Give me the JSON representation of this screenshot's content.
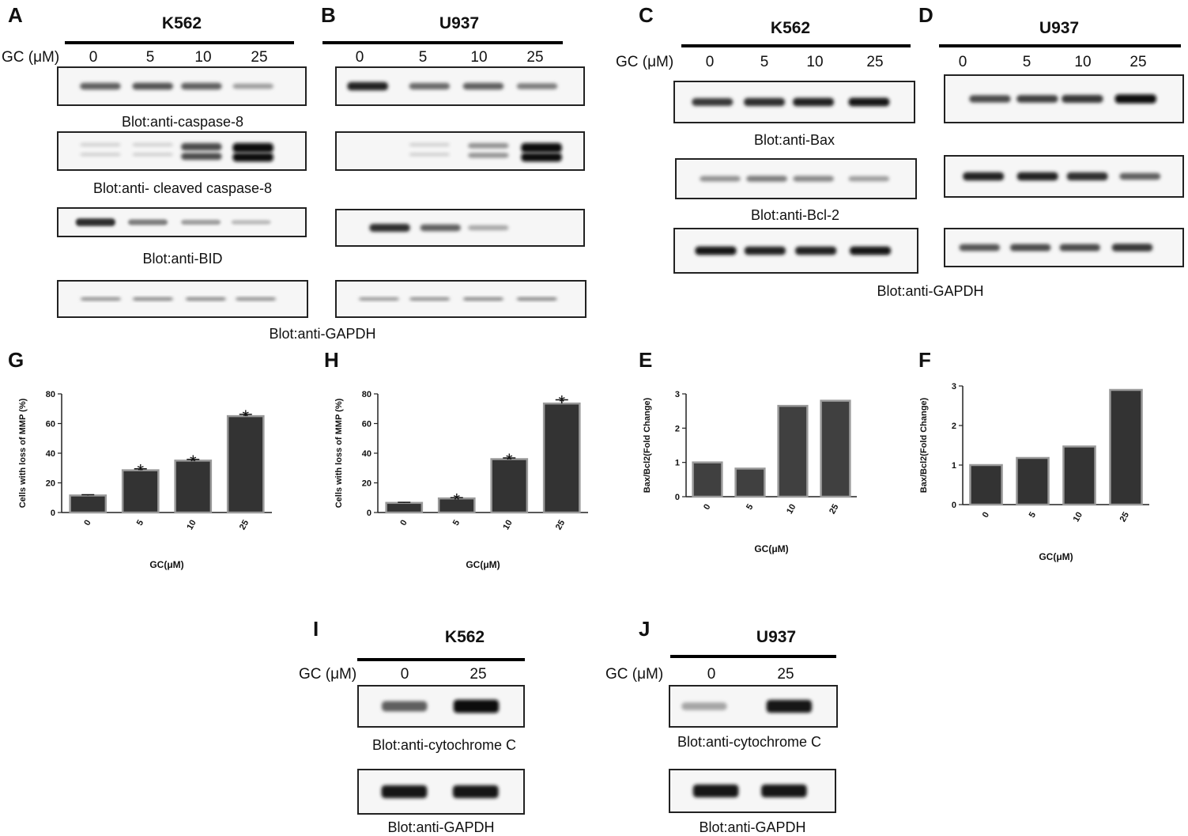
{
  "panels": {
    "A": {
      "letter": "A",
      "cell_line": "K562",
      "gc_label": "GC (μM)",
      "doses": [
        "0",
        "5",
        "10",
        "25"
      ],
      "blots": [
        "Blot:anti-caspase-8",
        "Blot:anti- cleaved caspase-8",
        "Blot:anti-BID",
        "Blot:anti-GAPDH"
      ]
    },
    "B": {
      "letter": "B",
      "cell_line": "U937",
      "doses": [
        "0",
        "5",
        "10",
        "25"
      ]
    },
    "C": {
      "letter": "C",
      "cell_line": "K562",
      "gc_label": "GC (μM)",
      "doses": [
        "0",
        "5",
        "10",
        "25"
      ],
      "blots": [
        "Blot:anti-Bax",
        "Blot:anti-Bcl-2",
        "Blot:anti-GAPDH"
      ]
    },
    "D": {
      "letter": "D",
      "cell_line": "U937",
      "doses": [
        "0",
        "5",
        "10",
        "25"
      ]
    },
    "E": {
      "letter": "E"
    },
    "F": {
      "letter": "F"
    },
    "G": {
      "letter": "G"
    },
    "H": {
      "letter": "H"
    },
    "I": {
      "letter": "I",
      "cell_line": "K562",
      "gc_label": "GC (μM)",
      "doses": [
        "0",
        "25"
      ],
      "blots": [
        "Blot:anti-cytochrome C",
        "Blot:anti-GAPDH"
      ]
    },
    "J": {
      "letter": "J",
      "cell_line": "U937",
      "gc_label": "GC (μM)",
      "doses": [
        "0",
        "25"
      ],
      "blots": [
        "Blot:anti-cytochrome C",
        "Blot:anti-GAPDH"
      ]
    }
  },
  "band_intensity": {
    "A": [
      [
        0.6,
        0.65,
        0.6,
        0.3
      ],
      [
        0.05,
        0.05,
        0.7,
        1.0
      ],
      [
        0.85,
        0.45,
        0.3,
        0.15
      ],
      [
        0.45,
        0.5,
        0.5,
        0.45
      ]
    ],
    "B": [
      [
        0.9,
        0.55,
        0.6,
        0.45
      ],
      [
        0.0,
        0.05,
        0.35,
        1.0
      ],
      [
        0.85,
        0.6,
        0.25,
        0.0
      ],
      [
        0.4,
        0.45,
        0.5,
        0.5
      ]
    ],
    "C": [
      [
        0.8,
        0.85,
        0.9,
        0.95
      ],
      [
        0.35,
        0.45,
        0.4,
        0.3
      ],
      [
        0.95,
        0.9,
        0.9,
        0.95
      ]
    ],
    "D": [
      [
        0.7,
        0.75,
        0.8,
        1.0
      ],
      [
        0.9,
        0.9,
        0.85,
        0.6
      ],
      [
        0.65,
        0.7,
        0.7,
        0.8
      ]
    ],
    "I": [
      [
        0.6,
        1.0
      ],
      [
        0.95,
        0.95
      ]
    ],
    "J": [
      [
        0.25,
        0.95
      ],
      [
        0.95,
        0.95
      ]
    ]
  },
  "chart_data": [
    {
      "id": "G",
      "type": "bar",
      "categories": [
        "0",
        "5",
        "10",
        "25"
      ],
      "values": [
        11.5,
        28.5,
        35,
        65
      ],
      "errors": [
        0.5,
        1,
        0.8,
        1.2
      ],
      "significant": [
        false,
        true,
        true,
        true
      ],
      "marker": "*",
      "xlabel": "GC(μM)",
      "ylabel": "Cells with loss of MMP (%)",
      "ylim": [
        0,
        80
      ],
      "yticks": [
        0,
        20,
        40,
        60,
        80
      ],
      "bar_color": "#333333"
    },
    {
      "id": "H",
      "type": "bar",
      "categories": [
        "0",
        "5",
        "10",
        "25"
      ],
      "values": [
        6.5,
        9.5,
        36,
        73.5
      ],
      "errors": [
        0.4,
        0.5,
        0.8,
        2.5
      ],
      "significant": [
        false,
        true,
        true,
        true
      ],
      "marker": "*",
      "xlabel": "GC(μM)",
      "ylabel": "Cells with loss of MMP (%)",
      "ylim": [
        0,
        80
      ],
      "yticks": [
        0,
        20,
        40,
        60,
        80
      ],
      "bar_color": "#333333"
    },
    {
      "id": "E",
      "type": "bar",
      "categories": [
        "0",
        "5",
        "10",
        "25"
      ],
      "values": [
        1.0,
        0.82,
        2.65,
        2.8
      ],
      "xlabel": "GC(μM)",
      "ylabel": "Bax/Bcl2(Fold Change)",
      "ylim": [
        0,
        3
      ],
      "yticks": [
        0,
        1,
        2,
        3
      ],
      "bar_color": "#404040"
    },
    {
      "id": "F",
      "type": "bar",
      "categories": [
        "0",
        "5",
        "10",
        "25"
      ],
      "values": [
        1.0,
        1.18,
        1.47,
        2.9
      ],
      "xlabel": "GC(μM)",
      "ylabel": "Bax/Bcl2(Fold Change)",
      "ylim": [
        0,
        3
      ],
      "yticks": [
        0,
        1,
        2,
        3
      ],
      "bar_color": "#333333"
    }
  ]
}
